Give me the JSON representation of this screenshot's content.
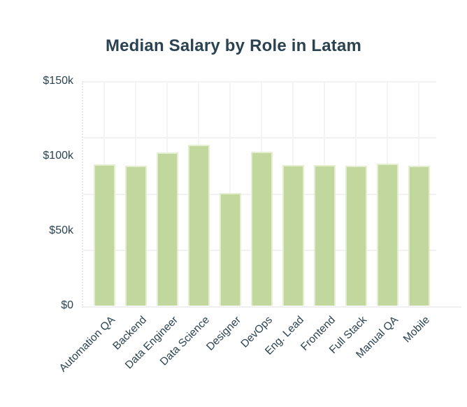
{
  "title": "Median Salary by Role in Latam",
  "colors": {
    "title_text": "#2b4350",
    "tick_text": "#2b4350",
    "bar_fill": "#c1d79d",
    "bar_border": "#e3efce",
    "h_gridline": "#f2f2f2",
    "v_gridline": "#f4f4f4",
    "axis_line": "#efefef"
  },
  "chart_data": {
    "type": "bar",
    "title": "Median Salary by Role in Latam",
    "categories": [
      "Automation QA",
      "Backend",
      "Data Engineer",
      "Data Science",
      "Designer",
      "DevOps",
      "Eng. Lead",
      "Frontend",
      "Full Stack",
      "Manual QA",
      "Mobile"
    ],
    "values": [
      94.5,
      93.5,
      102.5,
      107.5,
      75,
      103,
      94,
      94,
      93.5,
      95,
      93.5
    ],
    "values_unit": "USD thousands (k)",
    "xlabel": "",
    "ylabel": "",
    "ylim": [
      0,
      150
    ],
    "yticks": [
      {
        "value": 0,
        "label": "$0"
      },
      {
        "value": 50,
        "label": "$50k"
      },
      {
        "value": 100,
        "label": "$100k"
      },
      {
        "value": 150,
        "label": "$150k"
      }
    ],
    "grid": {
      "horizontal_bands": 4,
      "vertical_lines": "at category centers"
    },
    "legend_position": "none",
    "bar_color": "#c1d79d",
    "x_tick_rotation_deg": -45
  }
}
